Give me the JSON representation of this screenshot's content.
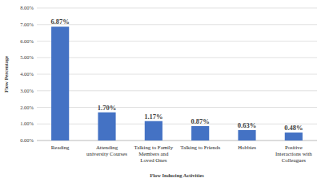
{
  "chart_data": {
    "type": "bar",
    "x_label": "Flow Inducing Activities",
    "y_label": "Flow Percentage",
    "categories": [
      "Reading",
      "Attending university Courses",
      "Talking to Family Members and Loved Ones",
      "Talking to Friends",
      "Hobbies",
      "Positive Interactions with Colleagues"
    ],
    "values": [
      6.87,
      1.7,
      1.17,
      0.87,
      0.63,
      0.48
    ],
    "value_labels": [
      "6.87%",
      "1.70%",
      "1.17%",
      "0.87%",
      "0.63%",
      "0.48%"
    ],
    "color": "#4472c4",
    "ylim": [
      0,
      8
    ],
    "yticks": [
      {
        "value": 0,
        "label": "0.00%"
      },
      {
        "value": 1,
        "label": "1.00%"
      },
      {
        "value": 2,
        "label": "2.00%"
      },
      {
        "value": 3,
        "label": "3.00%"
      },
      {
        "value": 4,
        "label": "4.00%"
      },
      {
        "value": 5,
        "label": "5.00%"
      },
      {
        "value": 6,
        "label": "6.00%"
      },
      {
        "value": 7,
        "label": "7.00%"
      },
      {
        "value": 8,
        "label": "8.00%"
      }
    ],
    "grid": true,
    "data_labels": true
  }
}
